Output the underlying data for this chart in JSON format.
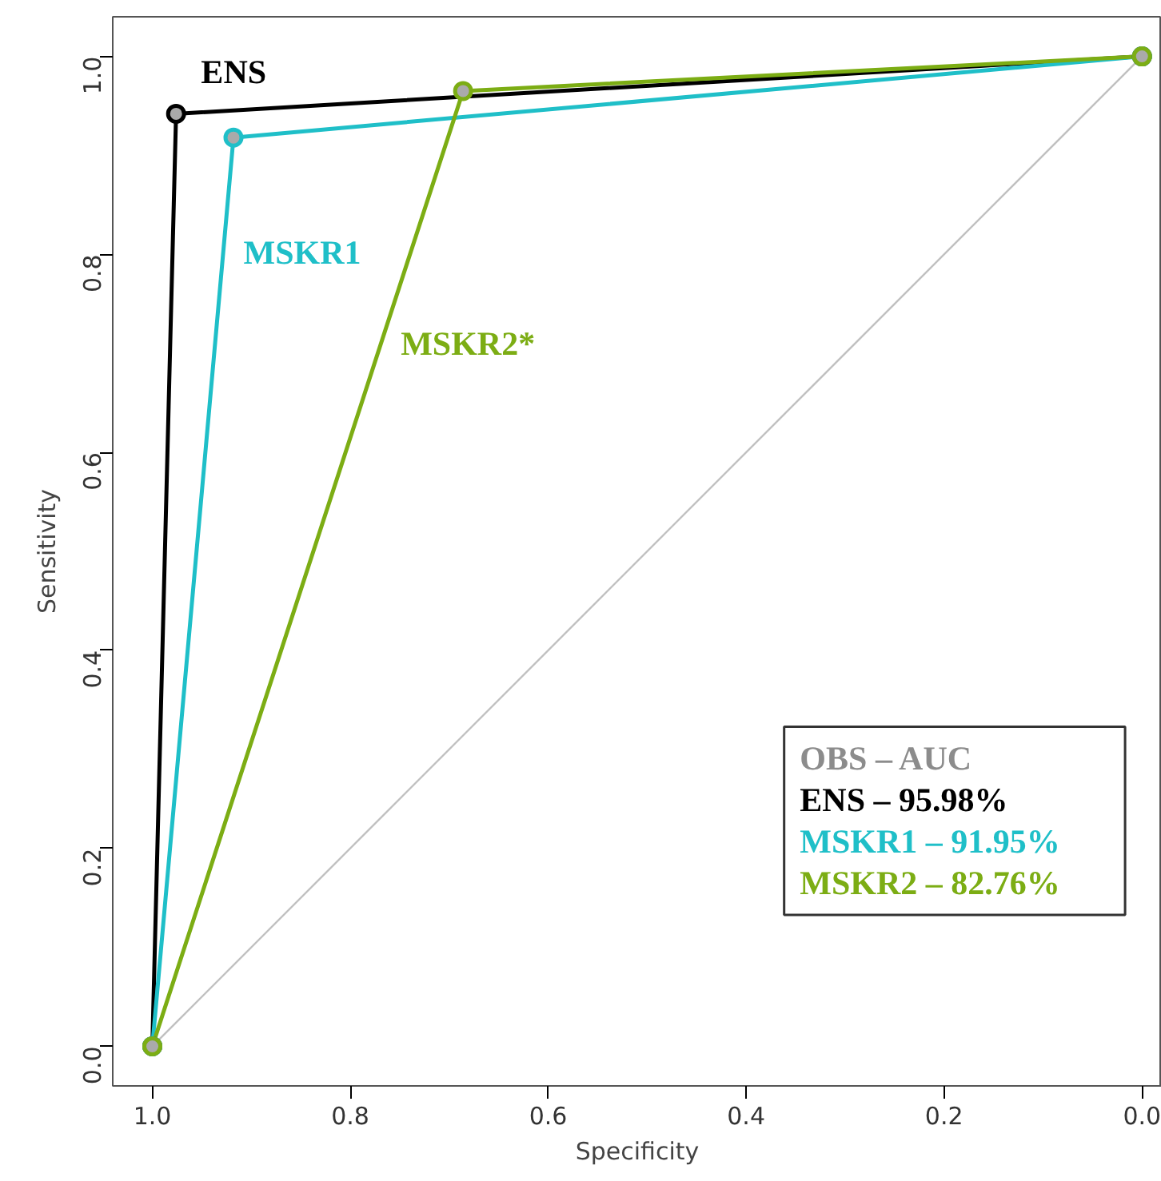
{
  "chart_data": {
    "type": "line",
    "xlabel": "Specificity",
    "ylabel": "Sensitivity",
    "xlim": [
      1.04,
      -0.02
    ],
    "ylim": [
      -0.04,
      1.04
    ],
    "xticks": [
      {
        "value": 1.0,
        "label": "1.0"
      },
      0.8,
      0.6,
      0.4,
      0.2,
      {
        "value": 0.0,
        "label": "0.0"
      }
    ],
    "yticks": [
      {
        "value": 0.0,
        "label": "0.0"
      },
      0.2,
      0.4,
      0.6,
      0.8,
      {
        "value": 1.0,
        "label": "1.0"
      }
    ],
    "grid": false,
    "legend": "bottom right",
    "legend_title": "OBS – AUC",
    "marker": "circle",
    "line_style": "solid",
    "series": [
      {
        "type": "line",
        "color": "#c0c0c0",
        "x": [
          1.0,
          0.0
        ],
        "values": [
          0.0,
          1.0
        ],
        "marker": "none"
      },
      {
        "name": "ENS – 95.98%",
        "color": "#000000",
        "x": [
          1.0,
          0.976,
          0.0
        ],
        "values": [
          0.0,
          0.942,
          1.0
        ]
      },
      {
        "name": "MSKR1 – 91.95%",
        "color": "#1fbfc8",
        "x": [
          1.0,
          0.918,
          0.0
        ],
        "values": [
          0.0,
          0.918,
          1.0
        ]
      },
      {
        "name": "MSKR2 – 82.76%",
        "color": "#7cad14",
        "x": [
          1.0,
          0.686,
          0.0
        ],
        "values": [
          0.0,
          0.965,
          1.0
        ]
      }
    ],
    "annotations": [
      "ENS",
      "MSKR1",
      "MSKR2*"
    ]
  }
}
